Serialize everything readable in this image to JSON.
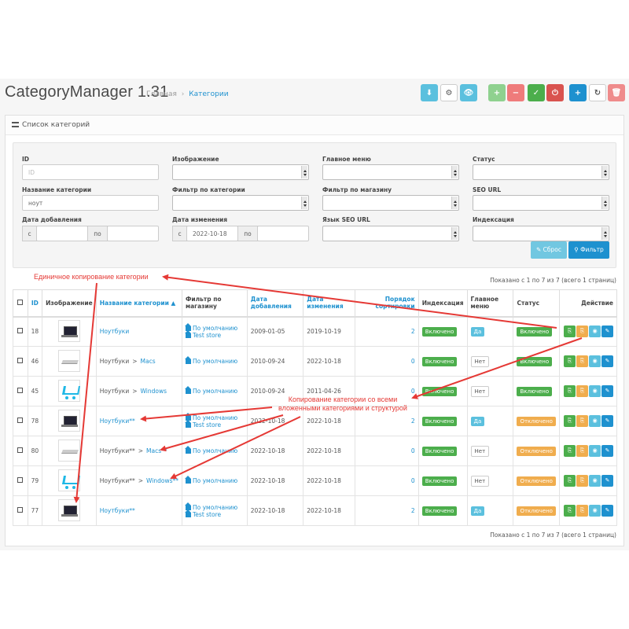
{
  "header": {
    "title": "CategoryManager 1.31",
    "breadcrumb": [
      "Главная",
      "Категории"
    ]
  },
  "toolbar": {
    "buttons": [
      {
        "icon": "download-icon",
        "color": "#5bc0de",
        "glyph": "⬇"
      },
      {
        "icon": "gears-icon",
        "color": "#ffffff",
        "glyph": "⚙"
      },
      {
        "icon": "eye-icon",
        "color": "#5bc0de",
        "glyph": "👁"
      },
      {
        "icon": "plus-icon",
        "color": "#8fd18f",
        "glyph": "+"
      },
      {
        "icon": "minus-icon",
        "color": "#ef7b7b",
        "glyph": "−"
      },
      {
        "icon": "check-icon",
        "color": "#4cae4c",
        "glyph": "✓"
      },
      {
        "icon": "power-icon",
        "color": "#d9534f",
        "glyph": "⏻"
      },
      {
        "icon": "add-icon",
        "color": "#1e91cf",
        "glyph": "+"
      },
      {
        "icon": "refresh-icon",
        "color": "#ffffff",
        "glyph": "↻"
      },
      {
        "icon": "trash-icon",
        "color": "#ef8b8b",
        "glyph": "🗑"
      }
    ]
  },
  "panel": {
    "title": "Список категорий"
  },
  "filter": {
    "labels": {
      "id": "ID",
      "image": "Изображение",
      "main_menu": "Главное меню",
      "status": "Статус",
      "name": "Название категории",
      "cat_filter": "Фильтр по категории",
      "store_filter": "Фильтр по магазину",
      "seo_url": "SEO URL",
      "date_added": "Дата добавления",
      "date_modified": "Дата изменения",
      "seo_lang": "Язык SEO URL",
      "indexing": "Индексация"
    },
    "id_placeholder": "ID",
    "name_value": "ноут",
    "from": "с",
    "to": "по",
    "date_modified_from": "2022-10-18",
    "reset_label": "Сброс",
    "filter_label": "Фильтр"
  },
  "pagination_text": "Показано с 1 по 7 из 7 (всего 1 страниц)",
  "table": {
    "headers": {
      "id": "ID",
      "image": "Изображение",
      "name": "Название категории ▲",
      "store": "Фильтр по магазину",
      "date_added": "Дата добавления",
      "date_modified": "Дата изменения",
      "sort": "Порядок сортировки",
      "indexing": "Индексация",
      "main_menu": "Главное меню",
      "status": "Статус",
      "action": "Действие"
    },
    "rows": [
      {
        "id": "18",
        "thumb": "laptop",
        "name": [
          {
            "t": "Ноутбуки",
            "link": true
          }
        ],
        "stores": [
          "По умолчанию",
          "Test store"
        ],
        "added": "2009-01-05",
        "modified": "2019-10-19",
        "sort": "2",
        "indexing": "Включено",
        "menu": "Да",
        "status": "Включено",
        "status_on": true
      },
      {
        "id": "46",
        "thumb": "mac",
        "name": [
          {
            "t": "Ноутбуки",
            "link": false
          },
          {
            "t": ">",
            "link": false
          },
          {
            "t": "Macs",
            "link": true
          }
        ],
        "stores": [
          "По умолчанию"
        ],
        "added": "2010-09-24",
        "modified": "2022-10-18",
        "sort": "0",
        "indexing": "Включено",
        "menu": "Нет",
        "status": "Включено",
        "status_on": true
      },
      {
        "id": "45",
        "thumb": "cart",
        "name": [
          {
            "t": "Ноутбуки",
            "link": false
          },
          {
            "t": ">",
            "link": false
          },
          {
            "t": "Windows",
            "link": true
          }
        ],
        "stores": [
          "По умолчанию"
        ],
        "added": "2010-09-24",
        "modified": "2011-04-26",
        "sort": "0",
        "indexing": "Включено",
        "menu": "Нет",
        "status": "Включено",
        "status_on": true
      },
      {
        "id": "78",
        "thumb": "laptop",
        "name": [
          {
            "t": "Ноутбуки**",
            "link": true
          }
        ],
        "stores": [
          "По умолчанию",
          "Test store"
        ],
        "added": "2022-10-18",
        "modified": "2022-10-18",
        "sort": "2",
        "indexing": "Включено",
        "menu": "Да",
        "status": "Отключено",
        "status_on": false
      },
      {
        "id": "80",
        "thumb": "mac",
        "name": [
          {
            "t": "Ноутбуки**",
            "link": false
          },
          {
            "t": ">",
            "link": false
          },
          {
            "t": "Macs**",
            "link": true
          }
        ],
        "stores": [
          "По умолчанию"
        ],
        "added": "2022-10-18",
        "modified": "2022-10-18",
        "sort": "0",
        "indexing": "Включено",
        "menu": "Нет",
        "status": "Отключено",
        "status_on": false
      },
      {
        "id": "79",
        "thumb": "cart",
        "name": [
          {
            "t": "Ноутбуки**",
            "link": false
          },
          {
            "t": ">",
            "link": false
          },
          {
            "t": "Windows**",
            "link": true
          }
        ],
        "stores": [
          "По умолчанию"
        ],
        "added": "2022-10-18",
        "modified": "2022-10-18",
        "sort": "0",
        "indexing": "Включено",
        "menu": "Нет",
        "status": "Отключено",
        "status_on": false
      },
      {
        "id": "77",
        "thumb": "laptop",
        "name": [
          {
            "t": "Ноутбуки**",
            "link": true
          }
        ],
        "stores": [
          "По умолчанию",
          "Test store"
        ],
        "added": "2022-10-18",
        "modified": "2022-10-18",
        "sort": "2",
        "indexing": "Включено",
        "menu": "Да",
        "status": "Отключено",
        "status_on": false
      }
    ]
  },
  "annotations": {
    "single_copy": "Единичное копирование категории",
    "deep_copy": "Копирование категории со всеми вложенными категориями и структурой"
  },
  "colors": {
    "accent": "#1e91cf",
    "success": "#4cae4c",
    "warning": "#f0ad4e",
    "info": "#5bc0de",
    "arrow": "#e53935"
  }
}
